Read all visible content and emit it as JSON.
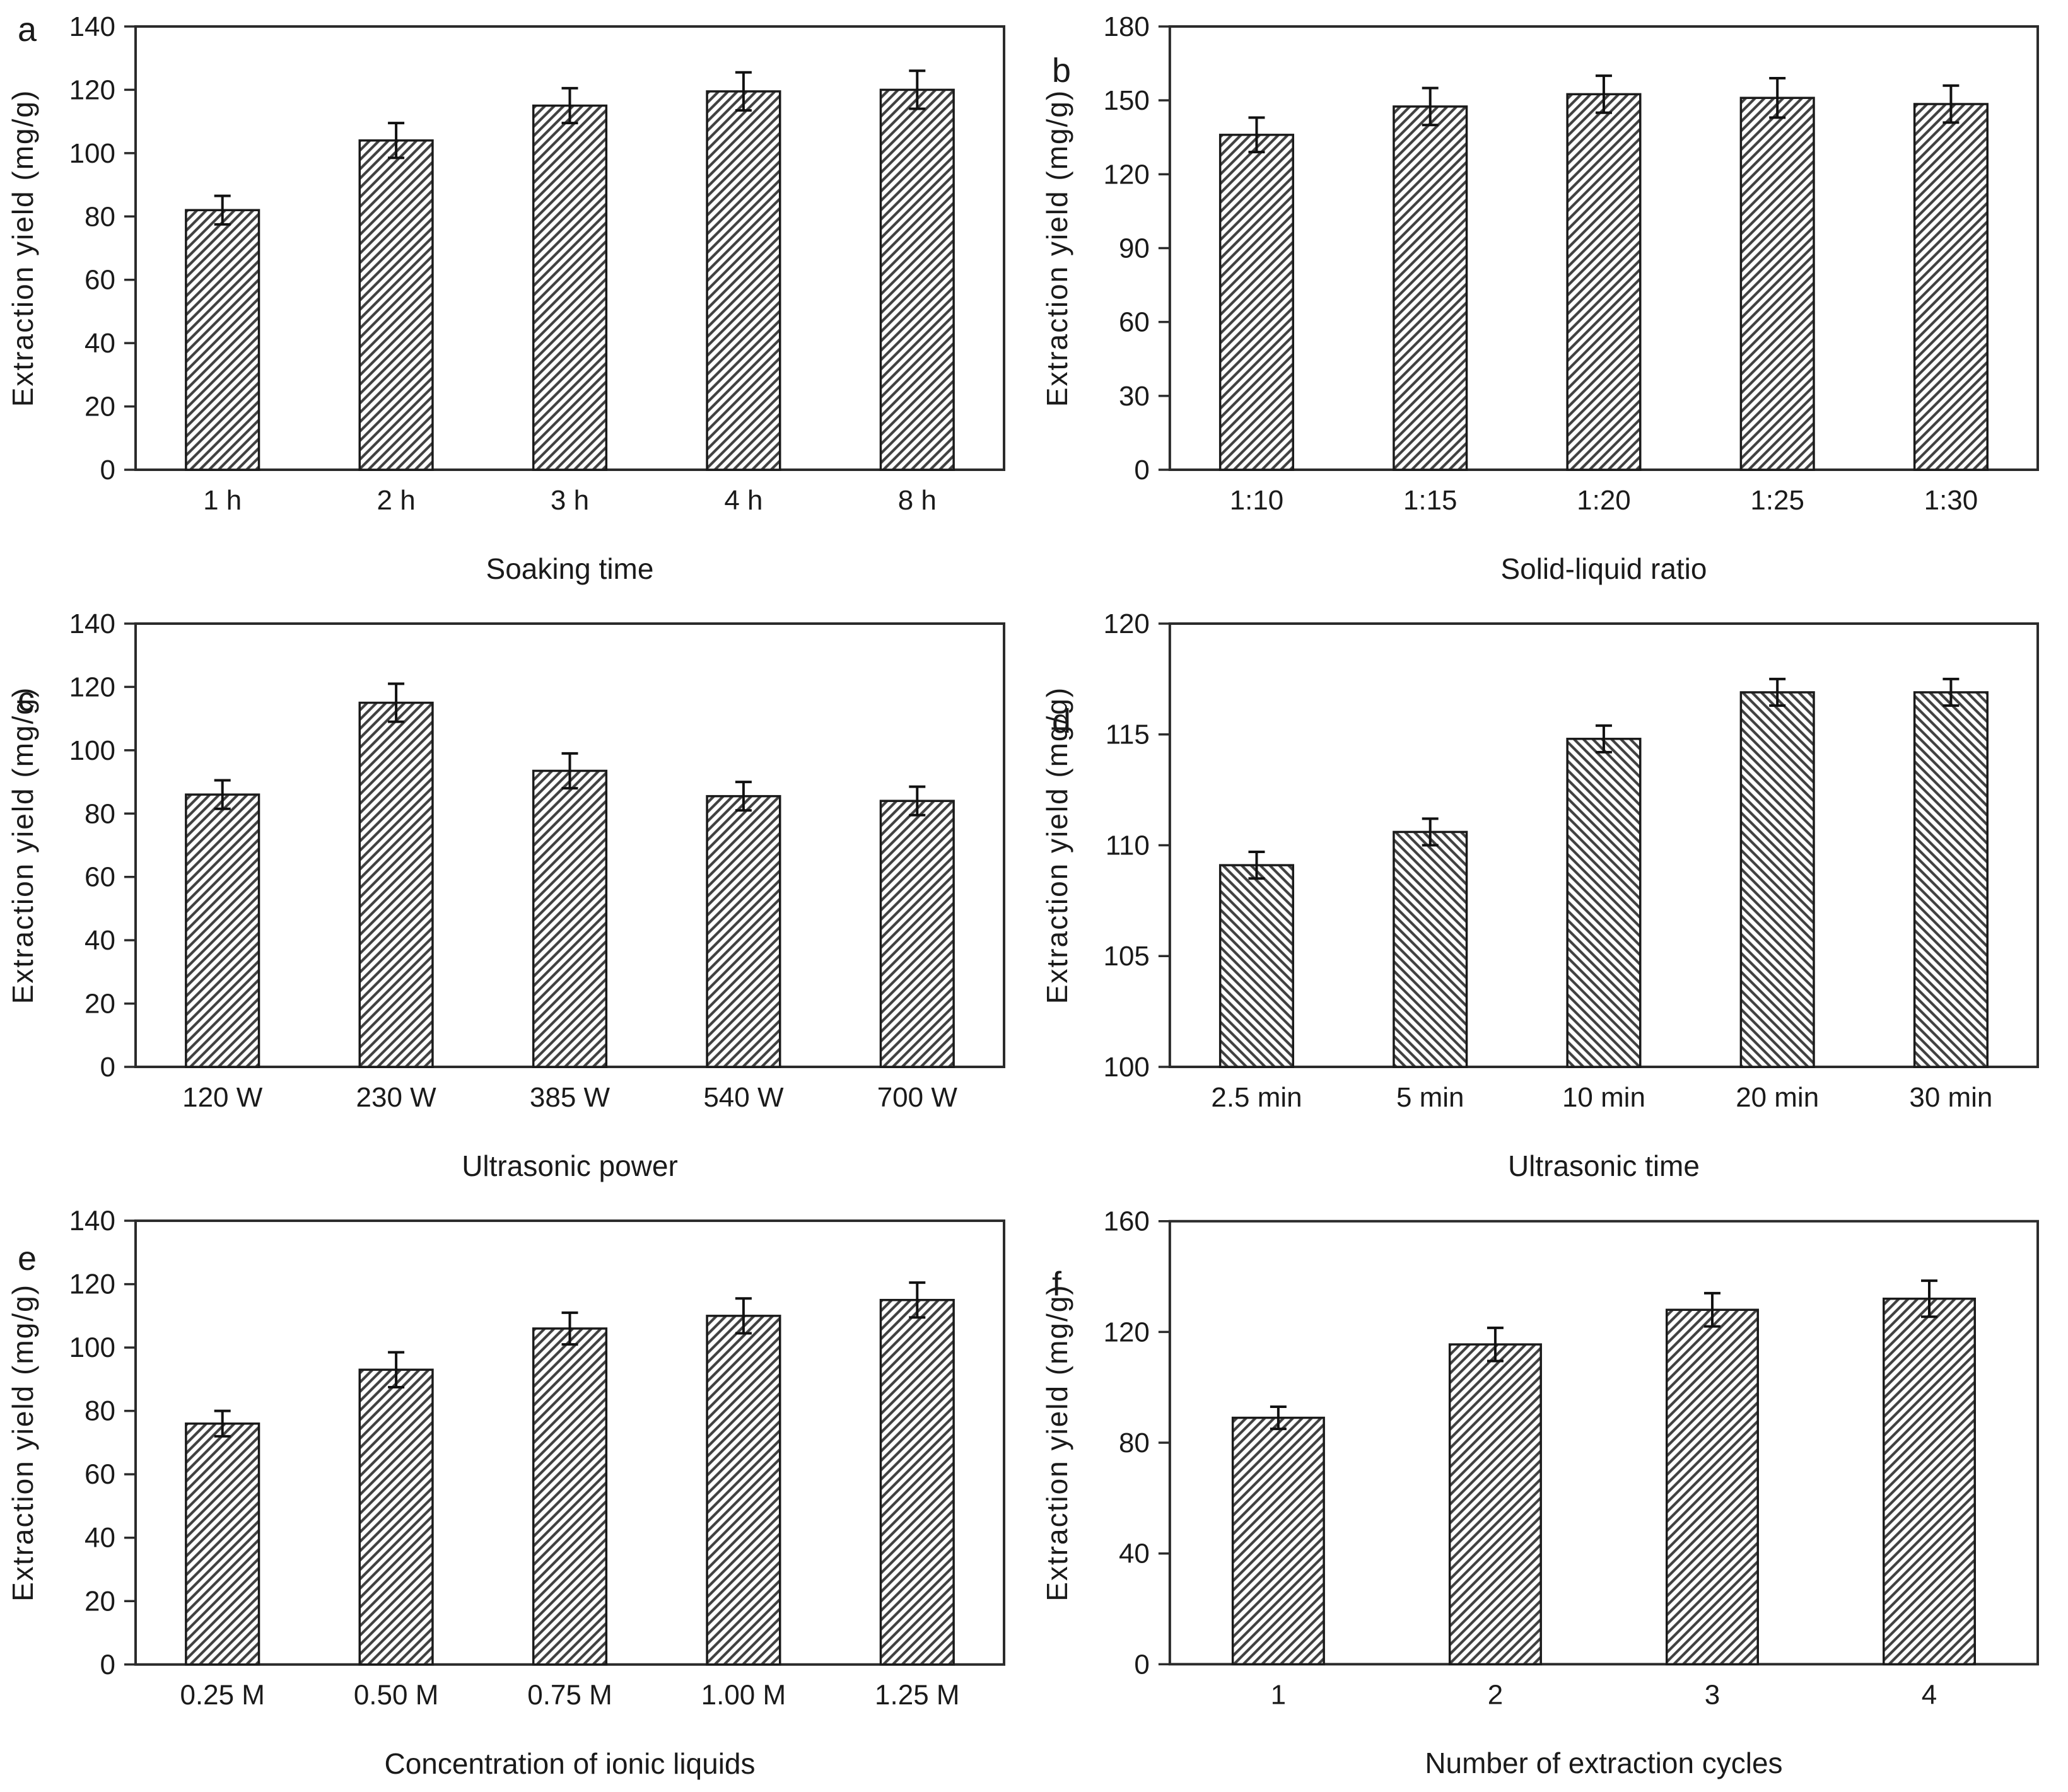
{
  "colors": {
    "background": "#ffffff",
    "axis": "#2b2b2b",
    "bar_outline": "#1a1a1a",
    "hatch": "#404040",
    "error_bar": "#111111",
    "text": "#1a1a1a"
  },
  "chart_data": [
    {
      "type": "bar",
      "panel_label": "a",
      "xlabel": "Soaking time",
      "ylabel": "Extraction yield (mg/g)",
      "categories": [
        "1 h",
        "2 h",
        "3 h",
        "4 h",
        "8 h"
      ],
      "values": [
        82,
        104,
        115,
        119.5,
        120
      ],
      "errors": [
        4.5,
        5.5,
        5.5,
        6,
        6
      ],
      "ylim": [
        0,
        140
      ],
      "ytick_step": 20,
      "hatch": "/",
      "grid": false,
      "legend": false
    },
    {
      "type": "bar",
      "panel_label": "b",
      "xlabel": "Solid-liquid ratio",
      "ylabel": "Extraction yield (mg/g)",
      "categories": [
        "1:10",
        "1:15",
        "1:20",
        "1:25",
        "1:30"
      ],
      "values": [
        136,
        147.5,
        152.5,
        151,
        148.5
      ],
      "errors": [
        7,
        7.5,
        7.5,
        8,
        7.5
      ],
      "ylim": [
        0,
        180
      ],
      "ytick_step": 30,
      "hatch": "/",
      "grid": false,
      "legend": false
    },
    {
      "type": "bar",
      "panel_label": "c",
      "xlabel": "Ultrasonic power",
      "ylabel": "Extraction yield (mg/g)",
      "categories": [
        "120 W",
        "230 W",
        "385 W",
        "540 W",
        "700 W"
      ],
      "values": [
        86,
        115,
        93.5,
        85.5,
        84
      ],
      "errors": [
        4.5,
        6,
        5.5,
        4.5,
        4.5
      ],
      "ylim": [
        0,
        140
      ],
      "ytick_step": 20,
      "hatch": "/",
      "grid": false,
      "legend": false
    },
    {
      "type": "bar",
      "panel_label": "d",
      "xlabel": "Ultrasonic time",
      "ylabel": "Extraction yield (mg/g)",
      "categories": [
        "2.5 min",
        "5 min",
        "10 min",
        "20 min",
        "30 min"
      ],
      "values": [
        109.1,
        110.6,
        114.8,
        116.9,
        116.9
      ],
      "errors": [
        0.6,
        0.6,
        0.6,
        0.6,
        0.6
      ],
      "ylim": [
        100,
        120
      ],
      "ytick_step": 5,
      "hatch": "\\",
      "grid": false,
      "legend": false
    },
    {
      "type": "bar",
      "panel_label": "e",
      "xlabel": "Concentration of ionic liquids",
      "ylabel": "Extraction yield (mg/g)",
      "categories": [
        "0.25 M",
        "0.50 M",
        "0.75 M",
        "1.00 M",
        "1.25 M"
      ],
      "values": [
        76,
        93,
        106,
        110,
        115
      ],
      "errors": [
        4,
        5.5,
        5,
        5.5,
        5.5
      ],
      "ylim": [
        0,
        140
      ],
      "ytick_step": 20,
      "hatch": "/",
      "grid": false,
      "legend": false
    },
    {
      "type": "bar",
      "panel_label": "f",
      "xlabel": "Number of extraction cycles",
      "ylabel": "Extraction yield (mg/g)",
      "categories": [
        "1",
        "2",
        "3",
        "4"
      ],
      "values": [
        89,
        115.5,
        128,
        132
      ],
      "errors": [
        4,
        6,
        6,
        6.5
      ],
      "ylim": [
        0,
        160
      ],
      "ytick_step": 40,
      "hatch": "/",
      "grid": false,
      "legend": false
    }
  ]
}
